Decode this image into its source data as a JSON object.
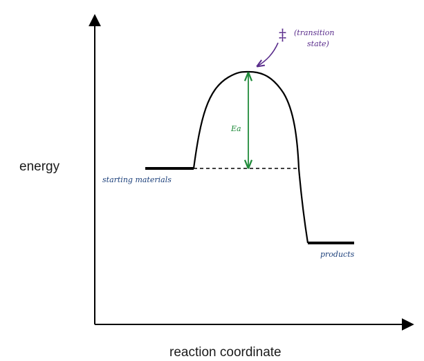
{
  "labels": {
    "y_axis": "energy",
    "x_axis": "reaction coordinate",
    "starting_materials": "starting materials",
    "products": "products",
    "activation_energy": "Ea",
    "ts_symbol": "‡",
    "ts_line1": "(transition",
    "ts_line2": "state)"
  },
  "colors": {
    "curve": "#000000",
    "activation_arrow": "#1f8a3a",
    "transition_annotation": "#5a2d8c",
    "handwriting_blue": "#1b3f7a"
  }
}
